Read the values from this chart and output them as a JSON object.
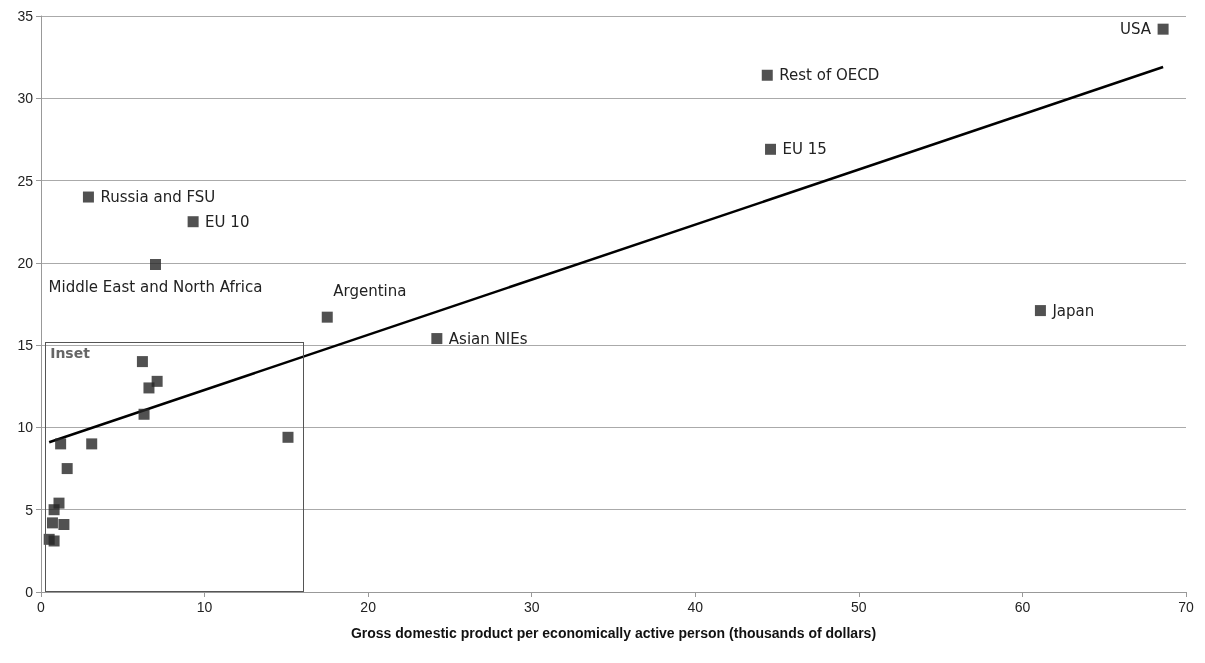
{
  "chart_data": {
    "type": "scatter",
    "xlabel": "Gross domestic product per economically active person (thousands of dollars)",
    "xlim": [
      0,
      70
    ],
    "xticks": [
      0,
      10,
      20,
      30,
      40,
      50,
      60,
      70
    ],
    "ylim": [
      0,
      35
    ],
    "yticks": [
      0,
      5,
      10,
      15,
      20,
      25,
      30,
      35
    ],
    "grid": "y",
    "series": [
      {
        "color": "#262626",
        "marker": "square",
        "x": [
          68.6,
          44.4,
          44.6,
          2.9,
          9.3,
          7.0,
          17.5,
          24.2,
          61.1,
          6.2,
          7.1,
          6.6,
          6.3,
          1.2,
          3.1,
          15.1,
          1.6,
          1.1,
          0.8,
          0.7,
          1.4,
          0.5,
          0.8
        ],
        "values": [
          34.2,
          31.4,
          26.9,
          24.0,
          22.5,
          19.9,
          16.7,
          15.4,
          17.1,
          14.0,
          12.8,
          12.4,
          10.8,
          9.0,
          9.0,
          9.4,
          7.5,
          5.4,
          5.0,
          4.2,
          4.1,
          3.2,
          3.1
        ]
      },
      {
        "type": "line",
        "color": "#000000",
        "marker": "none",
        "x": [
          0.5,
          68.6
        ],
        "values": [
          9.1,
          31.9
        ]
      }
    ],
    "annotations": [
      {
        "text": "USA",
        "x": 68.6,
        "y": 34.2
      },
      {
        "text": "Rest of OECD",
        "x": 44.4,
        "y": 31.4
      },
      {
        "text": "EU 15",
        "x": 44.6,
        "y": 26.9
      },
      {
        "text": "Russia and FSU",
        "x": 2.9,
        "y": 24.0
      },
      {
        "text": "EU 10",
        "x": 9.3,
        "y": 22.5
      },
      {
        "text": "Middle East and North Africa",
        "x": 7.0,
        "y": 19.9
      },
      {
        "text": "Argentina",
        "x": 17.5,
        "y": 16.7
      },
      {
        "text": "Asian NIEs",
        "x": 24.2,
        "y": 15.4
      },
      {
        "text": "Japan",
        "x": 61.1,
        "y": 17.1
      },
      "Inset"
    ]
  }
}
